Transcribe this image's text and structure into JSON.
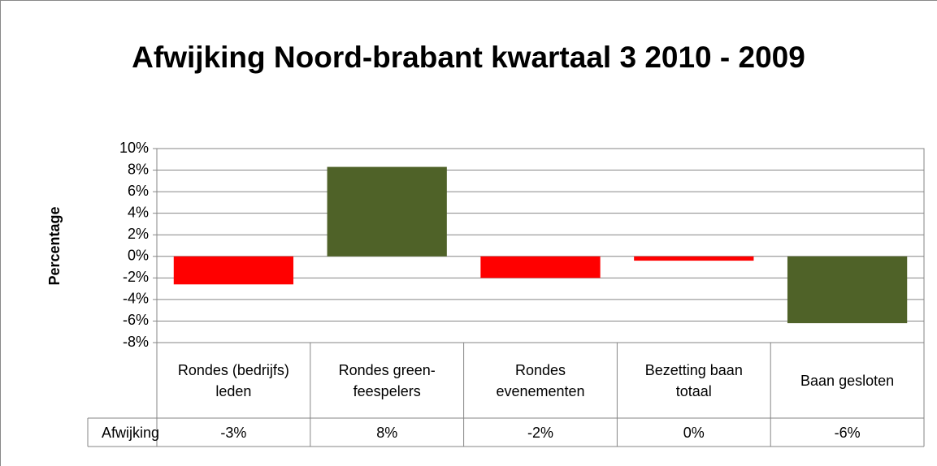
{
  "chart_data": {
    "type": "bar",
    "title": "Afwijking Noord-brabant kwartaal 3 2010 - 2009",
    "y_label": "Percentage",
    "categories": [
      "Rondes (bedrijfs) leden",
      "Rondes green-feespelers",
      "Rondes evenementen",
      "Bezetting baan totaal",
      "Baan gesloten"
    ],
    "series": [
      {
        "name": "Afwijking",
        "color": "#ff0000",
        "values": [
          -2.6,
          8.3,
          -2.0,
          -0.4,
          -6.2
        ],
        "value_labels": [
          "-3%",
          "8%",
          "-2%",
          "0%",
          "-6%"
        ],
        "point_colors": [
          "#ff0000",
          "#4f6228",
          "#ff0000",
          "#ff0000",
          "#4f6228"
        ]
      }
    ],
    "ylim": [
      -8,
      10
    ],
    "yticks": [
      {
        "value": -8,
        "label": "-8%"
      },
      {
        "value": -6,
        "label": "-6%"
      },
      {
        "value": -4,
        "label": "-4%"
      },
      {
        "value": -2,
        "label": "-2%"
      },
      {
        "value": 0,
        "label": "0%"
      },
      {
        "value": 2,
        "label": "2%"
      },
      {
        "value": 4,
        "label": "4%"
      },
      {
        "value": 6,
        "label": "6%"
      },
      {
        "value": 8,
        "label": "8%"
      },
      {
        "value": 10,
        "label": "10%"
      }
    ],
    "grid": true
  }
}
